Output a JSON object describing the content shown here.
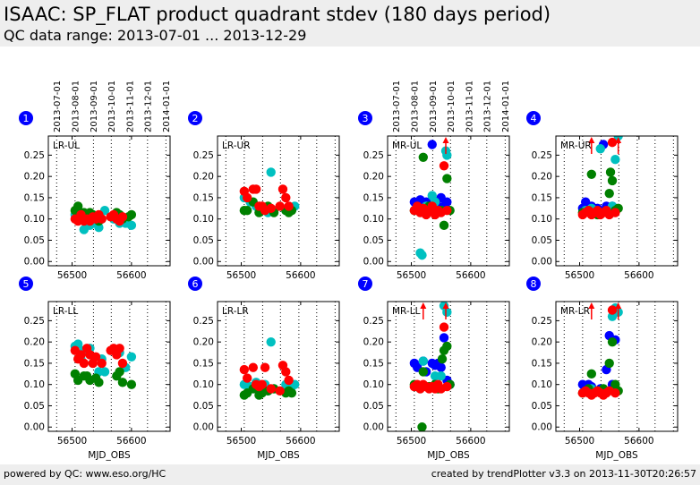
{
  "header": {
    "title": "ISAAC: SP_FLAT product quadrant stdev (180 days period)",
    "subtitle": "QC data range: 2013-07-01 ... 2013-12-29"
  },
  "footer": {
    "left": "powered by QC: www.eso.org/HC",
    "right": "created by trendPlotter v3.3 on 2013-11-30T20:26:57"
  },
  "colors": {
    "blue": "#0000ff",
    "cyan": "#00c0c0",
    "green": "#008000",
    "red": "#ff0000",
    "badge": "#0000ff"
  },
  "chart_data": [
    {
      "type": "scatter",
      "panel": "1",
      "label": "LR-UL",
      "xlabel": "",
      "ylabel": "",
      "xlim": [
        56460,
        56665
      ],
      "ylim": [
        -0.01,
        0.295
      ],
      "xticks": [
        56500,
        56600
      ],
      "yticks": [
        0.0,
        0.05,
        0.1,
        0.15,
        0.2,
        0.25
      ],
      "date_ticks": [
        "2013-07-01",
        "2013-08-01",
        "2013-09-01",
        "2013-10-01",
        "2013-11-01",
        "2013-12-01",
        "2014-01-01"
      ],
      "series": [
        {
          "color": "cyan",
          "x": [
            56505,
            56510,
            56515,
            56520,
            56525,
            56530,
            56540,
            56545,
            56550,
            56555,
            56570,
            56580,
            56590,
            56600
          ],
          "y": [
            0.11,
            0.12,
            0.1,
            0.075,
            0.11,
            0.085,
            0.09,
            0.08,
            0.1,
            0.12,
            0.1,
            0.09,
            0.09,
            0.085
          ]
        },
        {
          "color": "green",
          "x": [
            56505,
            56510,
            56515,
            56520,
            56530,
            56535,
            56545,
            56575,
            56580,
            56585,
            56595,
            56600
          ],
          "y": [
            0.12,
            0.13,
            0.1,
            0.115,
            0.115,
            0.11,
            0.095,
            0.115,
            0.11,
            0.1,
            0.105,
            0.11
          ]
        },
        {
          "color": "red",
          "x": [
            56505,
            56510,
            56515,
            56520,
            56525,
            56530,
            56535,
            56540,
            56545,
            56550,
            56565,
            56570,
            56575,
            56580,
            56585
          ],
          "y": [
            0.1,
            0.095,
            0.11,
            0.095,
            0.1,
            0.095,
            0.105,
            0.1,
            0.11,
            0.1,
            0.105,
            0.11,
            0.1,
            0.095,
            0.105
          ]
        }
      ]
    },
    {
      "type": "scatter",
      "panel": "2",
      "label": "LR-UR",
      "xlabel": "",
      "ylabel": "",
      "xlim": [
        56460,
        56665
      ],
      "ylim": [
        -0.01,
        0.295
      ],
      "xticks": [
        56500,
        56600
      ],
      "yticks": [
        0.0,
        0.05,
        0.1,
        0.15,
        0.2,
        0.25
      ],
      "date_ticks": [],
      "series": [
        {
          "color": "cyan",
          "x": [
            56505,
            56515,
            56525,
            56535,
            56545,
            56550,
            56555,
            56575,
            56585,
            56590
          ],
          "y": [
            0.15,
            0.14,
            0.13,
            0.12,
            0.115,
            0.21,
            0.12,
            0.12,
            0.125,
            0.13
          ]
        },
        {
          "color": "green",
          "x": [
            56505,
            56510,
            56520,
            56530,
            56535,
            56540,
            56545,
            56555,
            56575,
            56580,
            56585
          ],
          "y": [
            0.12,
            0.12,
            0.14,
            0.115,
            0.12,
            0.125,
            0.13,
            0.115,
            0.12,
            0.115,
            0.12
          ]
        },
        {
          "color": "red",
          "x": [
            56505,
            56510,
            56520,
            56525,
            56530,
            56535,
            56540,
            56550,
            56565,
            56570,
            56575,
            56580
          ],
          "y": [
            0.165,
            0.15,
            0.17,
            0.17,
            0.13,
            0.13,
            0.12,
            0.125,
            0.13,
            0.17,
            0.15,
            0.13
          ]
        }
      ]
    },
    {
      "type": "scatter",
      "panel": "3",
      "label": "MR-UL",
      "xlabel": "",
      "ylabel": "",
      "xlim": [
        56460,
        56665
      ],
      "ylim": [
        -0.01,
        0.295
      ],
      "xticks": [
        56500,
        56600
      ],
      "yticks": [
        0.0,
        0.05,
        0.1,
        0.15,
        0.2,
        0.25
      ],
      "date_ticks": [
        "2013-07-01",
        "2013-08-01",
        "2013-09-01",
        "2013-10-01",
        "2013-11-01",
        "2013-12-01",
        "2014-01-01"
      ],
      "arrows_up": [
        56558
      ],
      "series": [
        {
          "color": "blue",
          "x": [
            56505,
            56510,
            56515,
            56520,
            56525,
            56530,
            56535,
            56540,
            56545,
            56550,
            56555,
            56560
          ],
          "y": [
            0.14,
            0.13,
            0.145,
            0.135,
            0.14,
            0.13,
            0.275,
            0.14,
            0.13,
            0.15,
            0.13,
            0.14
          ]
        },
        {
          "color": "cyan",
          "x": [
            56515,
            56518,
            56520,
            56525,
            56535,
            56540,
            56550,
            56558,
            56560
          ],
          "y": [
            0.02,
            0.015,
            0.12,
            0.13,
            0.155,
            0.14,
            0.12,
            0.26,
            0.25
          ]
        },
        {
          "color": "green",
          "x": [
            56505,
            56510,
            56520,
            56530,
            56540,
            56550,
            56555,
            56560,
            56565
          ],
          "y": [
            0.12,
            0.125,
            0.245,
            0.13,
            0.115,
            0.12,
            0.085,
            0.195,
            0.12
          ]
        },
        {
          "color": "red",
          "x": [
            56505,
            56510,
            56515,
            56520,
            56525,
            56530,
            56535,
            56540,
            56545,
            56550,
            56555,
            56560
          ],
          "y": [
            0.12,
            0.13,
            0.115,
            0.125,
            0.11,
            0.12,
            0.13,
            0.11,
            0.12,
            0.115,
            0.225,
            0.12
          ]
        }
      ]
    },
    {
      "type": "scatter",
      "panel": "4",
      "label": "MR-UR",
      "xlabel": "",
      "ylabel": "",
      "xlim": [
        56460,
        56665
      ],
      "ylim": [
        -0.01,
        0.295
      ],
      "xticks": [
        56500,
        56600
      ],
      "yticks": [
        0.0,
        0.05,
        0.1,
        0.15,
        0.2,
        0.25
      ],
      "date_ticks": [],
      "arrows_up": [
        56520,
        56565
      ],
      "series": [
        {
          "color": "blue",
          "x": [
            56505,
            56510,
            56515,
            56520,
            56530,
            56540,
            56545,
            56550,
            56555,
            56560
          ],
          "y": [
            0.125,
            0.14,
            0.12,
            0.13,
            0.125,
            0.275,
            0.13,
            0.12,
            0.13,
            0.125
          ]
        },
        {
          "color": "cyan",
          "x": [
            56510,
            56520,
            56535,
            56550,
            56555,
            56560,
            56565
          ],
          "y": [
            0.12,
            0.125,
            0.265,
            0.12,
            0.13,
            0.24,
            0.295
          ]
        },
        {
          "color": "green",
          "x": [
            56505,
            56515,
            56520,
            56530,
            56540,
            56550,
            56552,
            56555,
            56560,
            56565
          ],
          "y": [
            0.115,
            0.12,
            0.205,
            0.11,
            0.115,
            0.16,
            0.21,
            0.19,
            0.12,
            0.125
          ]
        },
        {
          "color": "red",
          "x": [
            56505,
            56510,
            56515,
            56520,
            56525,
            56530,
            56535,
            56540,
            56545,
            56550,
            56555,
            56560
          ],
          "y": [
            0.11,
            0.115,
            0.12,
            0.11,
            0.115,
            0.12,
            0.11,
            0.115,
            0.12,
            0.11,
            0.28,
            0.115
          ]
        }
      ]
    },
    {
      "type": "scatter",
      "panel": "5",
      "label": "LR-LL",
      "xlabel": "MJD_OBS",
      "ylabel": "",
      "xlim": [
        56460,
        56665
      ],
      "ylim": [
        -0.01,
        0.295
      ],
      "xticks": [
        56500,
        56600
      ],
      "yticks": [
        0.0,
        0.05,
        0.1,
        0.15,
        0.2,
        0.25
      ],
      "date_ticks": [],
      "series": [
        {
          "color": "cyan",
          "x": [
            56505,
            56510,
            56515,
            56520,
            56530,
            56535,
            56545,
            56550,
            56555,
            56575,
            56580,
            56590,
            56600
          ],
          "y": [
            0.19,
            0.195,
            0.16,
            0.18,
            0.185,
            0.15,
            0.13,
            0.16,
            0.13,
            0.18,
            0.175,
            0.14,
            0.165
          ]
        },
        {
          "color": "green",
          "x": [
            56505,
            56510,
            56520,
            56525,
            56530,
            56540,
            56545,
            56575,
            56580,
            56585,
            56600
          ],
          "y": [
            0.125,
            0.11,
            0.12,
            0.12,
            0.11,
            0.115,
            0.105,
            0.12,
            0.13,
            0.105,
            0.1
          ]
        },
        {
          "color": "red",
          "x": [
            56505,
            56510,
            56515,
            56520,
            56525,
            56530,
            56535,
            56540,
            56550,
            56565,
            56570,
            56575,
            56580,
            56585
          ],
          "y": [
            0.18,
            0.16,
            0.17,
            0.15,
            0.185,
            0.17,
            0.15,
            0.165,
            0.15,
            0.18,
            0.185,
            0.17,
            0.185,
            0.15
          ]
        }
      ]
    },
    {
      "type": "scatter",
      "panel": "6",
      "label": "LR-LR",
      "xlabel": "MJD_OBS",
      "ylabel": "",
      "xlim": [
        56460,
        56665
      ],
      "ylim": [
        -0.01,
        0.295
      ],
      "xticks": [
        56500,
        56600
      ],
      "yticks": [
        0.0,
        0.05,
        0.1,
        0.15,
        0.2,
        0.25
      ],
      "date_ticks": [],
      "series": [
        {
          "color": "cyan",
          "x": [
            56505,
            56515,
            56525,
            56530,
            56540,
            56545,
            56550,
            56555,
            56575,
            56585,
            56590
          ],
          "y": [
            0.1,
            0.095,
            0.105,
            0.09,
            0.1,
            0.085,
            0.2,
            0.09,
            0.1,
            0.095,
            0.1
          ]
        },
        {
          "color": "green",
          "x": [
            56505,
            56510,
            56520,
            56530,
            56535,
            56545,
            56555,
            56575,
            56580,
            56585
          ],
          "y": [
            0.075,
            0.08,
            0.09,
            0.075,
            0.08,
            0.085,
            0.09,
            0.08,
            0.085,
            0.08
          ]
        },
        {
          "color": "red",
          "x": [
            56505,
            56510,
            56520,
            56525,
            56530,
            56535,
            56540,
            56550,
            56565,
            56570,
            56575,
            56580
          ],
          "y": [
            0.135,
            0.115,
            0.14,
            0.1,
            0.095,
            0.1,
            0.14,
            0.09,
            0.085,
            0.145,
            0.13,
            0.11
          ]
        }
      ]
    },
    {
      "type": "scatter",
      "panel": "7",
      "label": "MR-LL",
      "xlabel": "MJD_OBS",
      "ylabel": "",
      "xlim": [
        56460,
        56665
      ],
      "ylim": [
        -0.01,
        0.295
      ],
      "xticks": [
        56500,
        56600
      ],
      "yticks": [
        0.0,
        0.05,
        0.1,
        0.15,
        0.2,
        0.25
      ],
      "date_ticks": [],
      "arrows_up": [
        56520,
        56558
      ],
      "series": [
        {
          "color": "blue",
          "x": [
            56505,
            56510,
            56520,
            56525,
            56535,
            56540,
            56545,
            56550,
            56555,
            56560,
            56565
          ],
          "y": [
            0.15,
            0.14,
            0.155,
            0.13,
            0.15,
            0.145,
            0.15,
            0.14,
            0.21,
            0.11,
            0.1
          ]
        },
        {
          "color": "cyan",
          "x": [
            56515,
            56520,
            56540,
            56550,
            56555,
            56560
          ],
          "y": [
            0.09,
            0.155,
            0.12,
            0.12,
            0.285,
            0.27
          ]
        },
        {
          "color": "green",
          "x": [
            56505,
            56510,
            56518,
            56520,
            56530,
            56540,
            56545,
            56552,
            56555,
            56560,
            56565
          ],
          "y": [
            0.1,
            0.095,
            0.0,
            0.13,
            0.095,
            0.1,
            0.09,
            0.16,
            0.18,
            0.19,
            0.1
          ]
        },
        {
          "color": "red",
          "x": [
            56505,
            56510,
            56515,
            56520,
            56525,
            56530,
            56535,
            56540,
            56545,
            56550,
            56555,
            56560
          ],
          "y": [
            0.095,
            0.1,
            0.09,
            0.1,
            0.095,
            0.09,
            0.095,
            0.09,
            0.1,
            0.09,
            0.235,
            0.095
          ]
        }
      ]
    },
    {
      "type": "scatter",
      "panel": "8",
      "label": "MR-LR",
      "xlabel": "MJD_OBS",
      "ylabel": "",
      "xlim": [
        56460,
        56665
      ],
      "ylim": [
        -0.01,
        0.295
      ],
      "xticks": [
        56500,
        56600
      ],
      "yticks": [
        0.0,
        0.05,
        0.1,
        0.15,
        0.2,
        0.25
      ],
      "date_ticks": [],
      "arrows_up": [
        56520,
        56565
      ],
      "series": [
        {
          "color": "blue",
          "x": [
            56505,
            56510,
            56515,
            56520,
            56535,
            56545,
            56550,
            56555,
            56560
          ],
          "y": [
            0.1,
            0.09,
            0.1,
            0.095,
            0.09,
            0.135,
            0.215,
            0.1,
            0.205
          ]
        },
        {
          "color": "cyan",
          "x": [
            56520,
            56530,
            56540,
            56555,
            56560,
            56565
          ],
          "y": [
            0.09,
            0.085,
            0.09,
            0.26,
            0.28,
            0.27
          ]
        },
        {
          "color": "green",
          "x": [
            56505,
            56515,
            56520,
            56530,
            56540,
            56550,
            56555,
            56560,
            56565
          ],
          "y": [
            0.08,
            0.09,
            0.125,
            0.085,
            0.09,
            0.15,
            0.2,
            0.1,
            0.085
          ]
        },
        {
          "color": "red",
          "x": [
            56505,
            56510,
            56515,
            56520,
            56525,
            56530,
            56535,
            56540,
            56545,
            56550,
            56555,
            56560
          ],
          "y": [
            0.08,
            0.085,
            0.08,
            0.075,
            0.08,
            0.085,
            0.08,
            0.075,
            0.08,
            0.085,
            0.275,
            0.08
          ]
        }
      ]
    }
  ]
}
